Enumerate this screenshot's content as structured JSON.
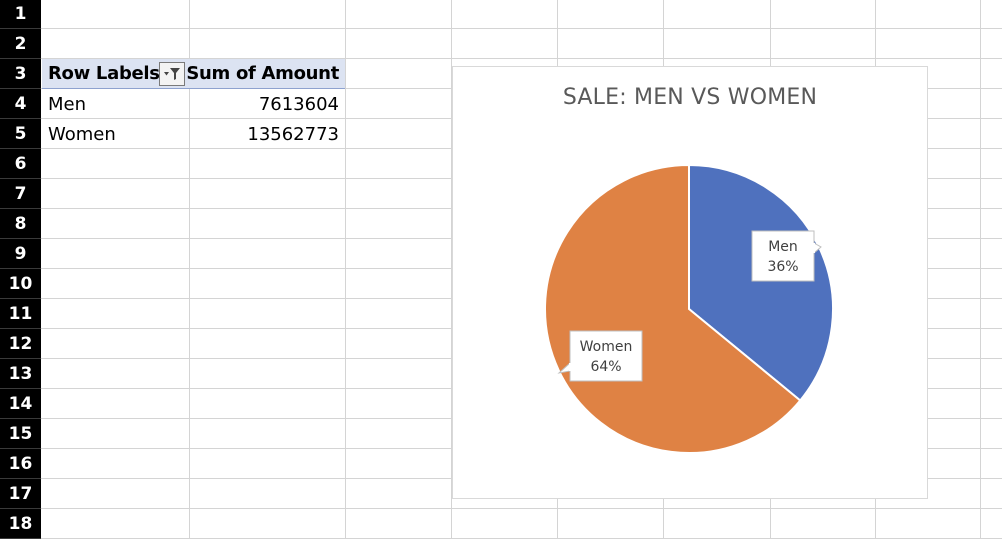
{
  "sheet": {
    "row_numbers": [
      "1",
      "2",
      "3",
      "4",
      "5",
      "6",
      "7",
      "8",
      "9",
      "10",
      "11",
      "12",
      "13",
      "14",
      "15",
      "16",
      "17",
      "18"
    ]
  },
  "pivot": {
    "header_row_labels": "Row Labels",
    "header_sum": "Sum of Amount",
    "filter_icon": "filter-dropdown-icon",
    "rows": [
      {
        "label": "Men",
        "value": "7613604"
      },
      {
        "label": "Women",
        "value": "13562773"
      }
    ]
  },
  "chart_data": {
    "type": "pie",
    "title": "SALE: MEN VS WOMEN",
    "slices": [
      {
        "name": "Men",
        "value": 7613604,
        "percent_label": "36%",
        "color": "#4f71be"
      },
      {
        "name": "Women",
        "value": 13562773,
        "percent_label": "64%",
        "color": "#df8244"
      }
    ]
  }
}
